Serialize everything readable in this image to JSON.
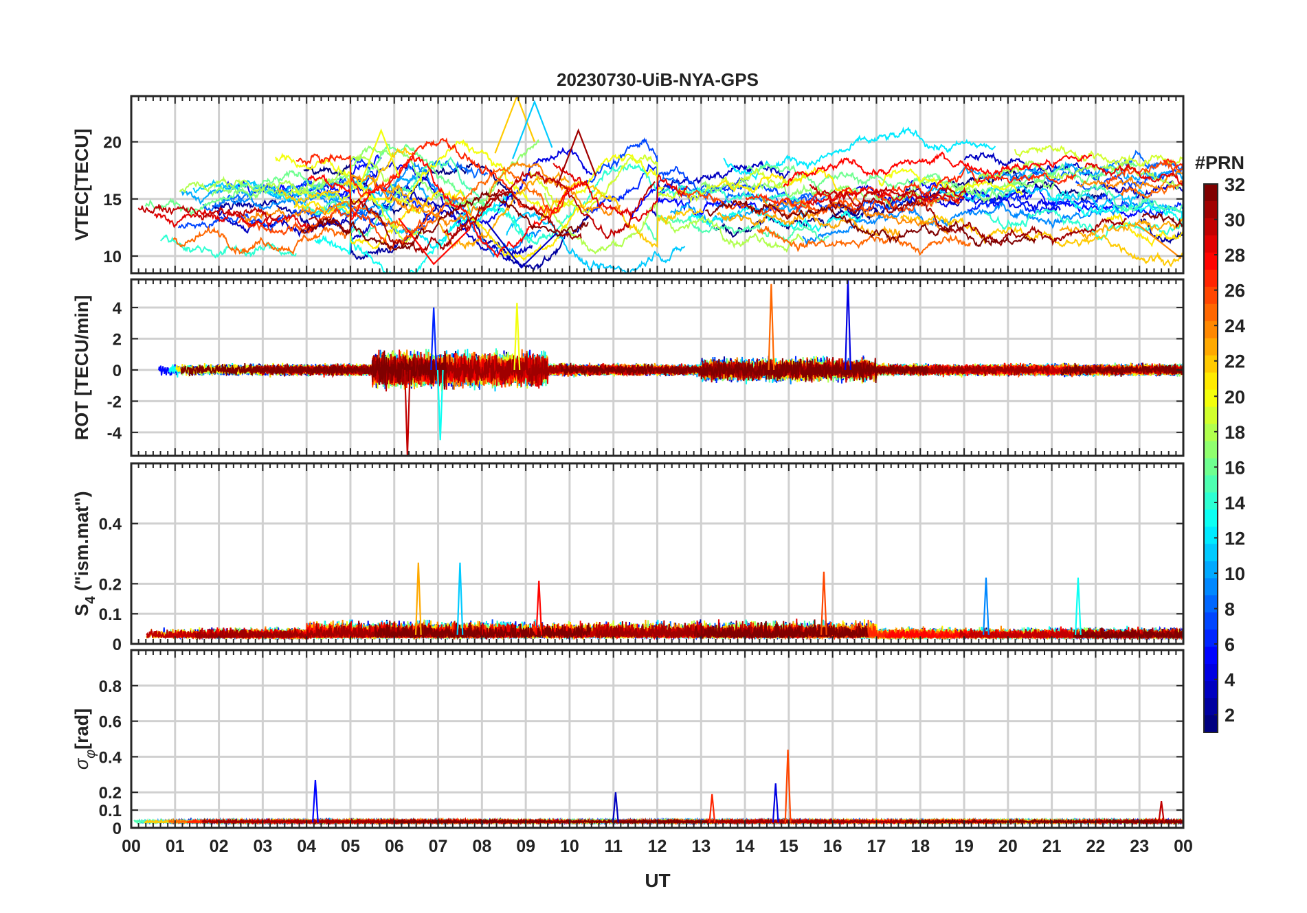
{
  "title": "20230730-UiB-NYA-GPS",
  "x_axis": {
    "label": "UT",
    "tick_labels": [
      "00",
      "01",
      "02",
      "03",
      "04",
      "05",
      "06",
      "07",
      "08",
      "09",
      "10",
      "11",
      "12",
      "13",
      "14",
      "15",
      "16",
      "17",
      "18",
      "19",
      "20",
      "21",
      "22",
      "23",
      "00"
    ]
  },
  "colorbar": {
    "label": "#PRN",
    "tick_labels": [
      "2",
      "4",
      "6",
      "8",
      "10",
      "12",
      "14",
      "16",
      "18",
      "20",
      "22",
      "24",
      "26",
      "28",
      "30",
      "32"
    ],
    "range": [
      1,
      32
    ]
  },
  "chart_data": [
    {
      "type": "line",
      "id": "vtec",
      "title": "20230730-UiB-NYA-GPS",
      "xlabel": "",
      "ylabel": "VTEC[TECU]",
      "xlim": [
        0,
        24
      ],
      "ylim": [
        8.5,
        24
      ],
      "yticks": [
        10,
        15,
        20
      ],
      "ytick_labels": [
        "10",
        "15",
        "20"
      ],
      "series_note": "one line per satellite PRN 1-32, colored by PRN",
      "features": [
        {
          "prn": 20,
          "peak_time_h": 5.7,
          "peak_value": 21
        },
        {
          "prn": 22,
          "peak_time_h": 8.8,
          "peak_value": 24
        },
        {
          "prn": 11,
          "peak_time_h": 9.2,
          "peak_value": 23.5
        },
        {
          "prn": 31,
          "peak_time_h": 10.2,
          "peak_value": 21
        },
        {
          "prn": 3,
          "min_time_h": 8.9,
          "min_value": 9
        },
        {
          "prn": 28,
          "min_time_h": 6.9,
          "min_value": 9.3
        },
        {
          "prn": 24,
          "end_time_h": 23.95,
          "end_value": 9.8
        }
      ]
    },
    {
      "type": "line",
      "id": "rot",
      "ylabel": "ROT [TECU/min]",
      "xlim": [
        0,
        24
      ],
      "ylim": [
        -5.5,
        5.8
      ],
      "yticks": [
        -4,
        -2,
        0,
        2,
        4
      ],
      "ytick_labels": [
        "-4",
        "-2",
        "0",
        "2",
        "4"
      ],
      "features": [
        {
          "prn": 30,
          "time_h": 6.3,
          "value": -5.5
        },
        {
          "prn": 13,
          "time_h": 7.05,
          "value": -4.5
        },
        {
          "prn": 20,
          "time_h": 8.8,
          "value": 4.3
        },
        {
          "prn": 25,
          "time_h": 14.6,
          "value": 5.5
        },
        {
          "prn": 4,
          "time_h": 16.35,
          "value": 5.8
        },
        {
          "prn": 6,
          "time_h": 6.9,
          "value": 4
        }
      ]
    },
    {
      "type": "line",
      "id": "s4",
      "ylabel": "S4 (\"ism.mat\")",
      "ylabel_main": "S",
      "ylabel_sub": "4",
      "ylabel_rest": " (\"ism.mat\")",
      "xlim": [
        0,
        24
      ],
      "ylim": [
        0,
        0.6
      ],
      "yticks": [
        0,
        0.1,
        0.2,
        0.4
      ],
      "ytick_labels": [
        "0",
        "0.1",
        "0.2",
        "0.4"
      ],
      "features": [
        {
          "prn": 23,
          "time_h": 6.55,
          "value": 0.27
        },
        {
          "prn": 11,
          "time_h": 7.5,
          "value": 0.27
        },
        {
          "prn": 26,
          "time_h": 15.8,
          "value": 0.24
        },
        {
          "prn": 9,
          "time_h": 19.5,
          "value": 0.22
        },
        {
          "prn": 13,
          "time_h": 21.6,
          "value": 0.22
        },
        {
          "prn": 28,
          "time_h": 9.3,
          "value": 0.21
        }
      ]
    },
    {
      "type": "line",
      "id": "sigma_phi",
      "ylabel": "σφ[rad]",
      "ylabel_main": "σ",
      "ylabel_sub": "φ",
      "ylabel_rest": "[rad]",
      "xlim": [
        0,
        24
      ],
      "ylim": [
        0,
        1.0
      ],
      "yticks": [
        0,
        0.1,
        0.2,
        0.4,
        0.6,
        0.8
      ],
      "ytick_labels": [
        "0",
        "0.1",
        "0.2",
        "0.4",
        "0.6",
        "0.8"
      ],
      "features": [
        {
          "prn": 26,
          "time_h": 14.98,
          "value": 0.44
        },
        {
          "prn": 5,
          "time_h": 4.2,
          "value": 0.27
        },
        {
          "prn": 4,
          "time_h": 14.7,
          "value": 0.25
        },
        {
          "prn": 3,
          "time_h": 11.05,
          "value": 0.2
        },
        {
          "prn": 27,
          "time_h": 13.25,
          "value": 0.19
        },
        {
          "prn": 30,
          "time_h": 23.5,
          "value": 0.15
        }
      ]
    }
  ]
}
